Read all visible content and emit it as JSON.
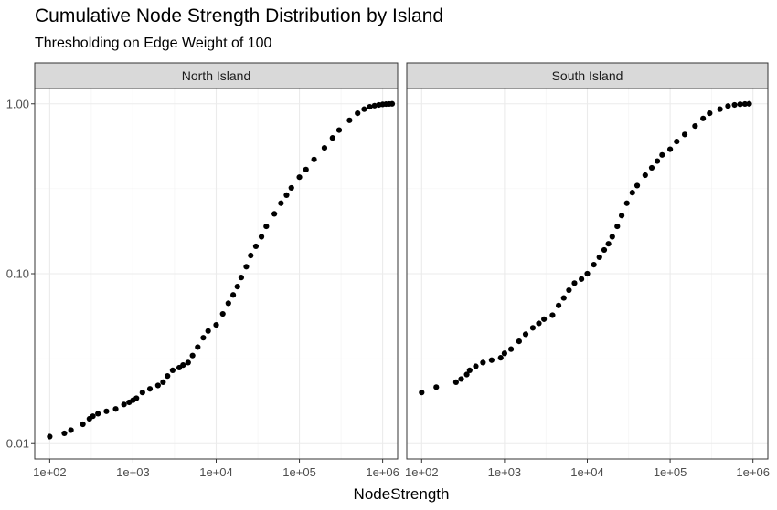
{
  "chart_data": {
    "type": "scatter",
    "title": "Cumulative Node Strength Distribution by Island",
    "subtitle": "Thresholding on Edge Weight of 100",
    "xlabel": "NodeStrength",
    "ylabel": "",
    "x_scale": "log10",
    "y_scale": "log10",
    "xlim": [
      100,
      1000000
    ],
    "ylim": [
      0.01,
      1.0
    ],
    "x_ticks": [
      100,
      1000,
      10000,
      100000,
      1000000
    ],
    "x_tick_labels": [
      "1e+02",
      "1e+03",
      "1e+04",
      "1e+05",
      "1e+06"
    ],
    "y_ticks": [
      0.01,
      0.1,
      1.0
    ],
    "y_tick_labels": [
      "0.01",
      "0.10",
      "1.00"
    ],
    "grid": true,
    "point_color": "#000000",
    "panels": [
      {
        "name": "North Island",
        "x": [
          100,
          150,
          180,
          250,
          300,
          330,
          380,
          480,
          620,
          780,
          900,
          1000,
          1100,
          1300,
          1600,
          2000,
          2300,
          2600,
          3000,
          3600,
          4000,
          4600,
          5200,
          6000,
          7000,
          8000,
          10000,
          12000,
          14000,
          16000,
          18000,
          20000,
          23000,
          26000,
          30000,
          35000,
          40000,
          50000,
          60000,
          70000,
          80000,
          100000,
          120000,
          150000,
          200000,
          250000,
          300000,
          400000,
          500000,
          600000,
          700000,
          800000,
          900000,
          1000000,
          1100000,
          1200000,
          1300000
        ],
        "y": [
          0.011,
          0.0115,
          0.012,
          0.013,
          0.014,
          0.0145,
          0.015,
          0.0155,
          0.016,
          0.017,
          0.0175,
          0.018,
          0.0185,
          0.02,
          0.021,
          0.022,
          0.023,
          0.025,
          0.027,
          0.028,
          0.029,
          0.03,
          0.033,
          0.037,
          0.042,
          0.046,
          0.05,
          0.058,
          0.067,
          0.075,
          0.084,
          0.095,
          0.11,
          0.128,
          0.145,
          0.165,
          0.19,
          0.225,
          0.26,
          0.29,
          0.32,
          0.37,
          0.41,
          0.47,
          0.55,
          0.63,
          0.7,
          0.8,
          0.88,
          0.93,
          0.96,
          0.975,
          0.985,
          0.992,
          0.996,
          0.998,
          1.0
        ]
      },
      {
        "name": "South Island",
        "x": [
          100,
          150,
          260,
          300,
          350,
          380,
          450,
          550,
          700,
          900,
          1000,
          1200,
          1500,
          1800,
          2200,
          2600,
          3000,
          3800,
          4500,
          5200,
          6000,
          7000,
          8500,
          10000,
          12000,
          14000,
          16000,
          18000,
          20000,
          23000,
          26000,
          30000,
          35000,
          40000,
          50000,
          60000,
          70000,
          80000,
          100000,
          120000,
          150000,
          200000,
          250000,
          300000,
          400000,
          500000,
          600000,
          700000,
          800000,
          900000
        ],
        "y": [
          0.02,
          0.0215,
          0.023,
          0.024,
          0.0255,
          0.027,
          0.0285,
          0.03,
          0.031,
          0.032,
          0.034,
          0.036,
          0.04,
          0.044,
          0.048,
          0.051,
          0.054,
          0.057,
          0.065,
          0.072,
          0.08,
          0.088,
          0.093,
          0.1,
          0.113,
          0.125,
          0.138,
          0.15,
          0.165,
          0.19,
          0.22,
          0.26,
          0.3,
          0.33,
          0.38,
          0.42,
          0.46,
          0.5,
          0.54,
          0.6,
          0.66,
          0.74,
          0.82,
          0.88,
          0.93,
          0.97,
          0.985,
          0.994,
          0.998,
          1.0
        ]
      }
    ]
  }
}
